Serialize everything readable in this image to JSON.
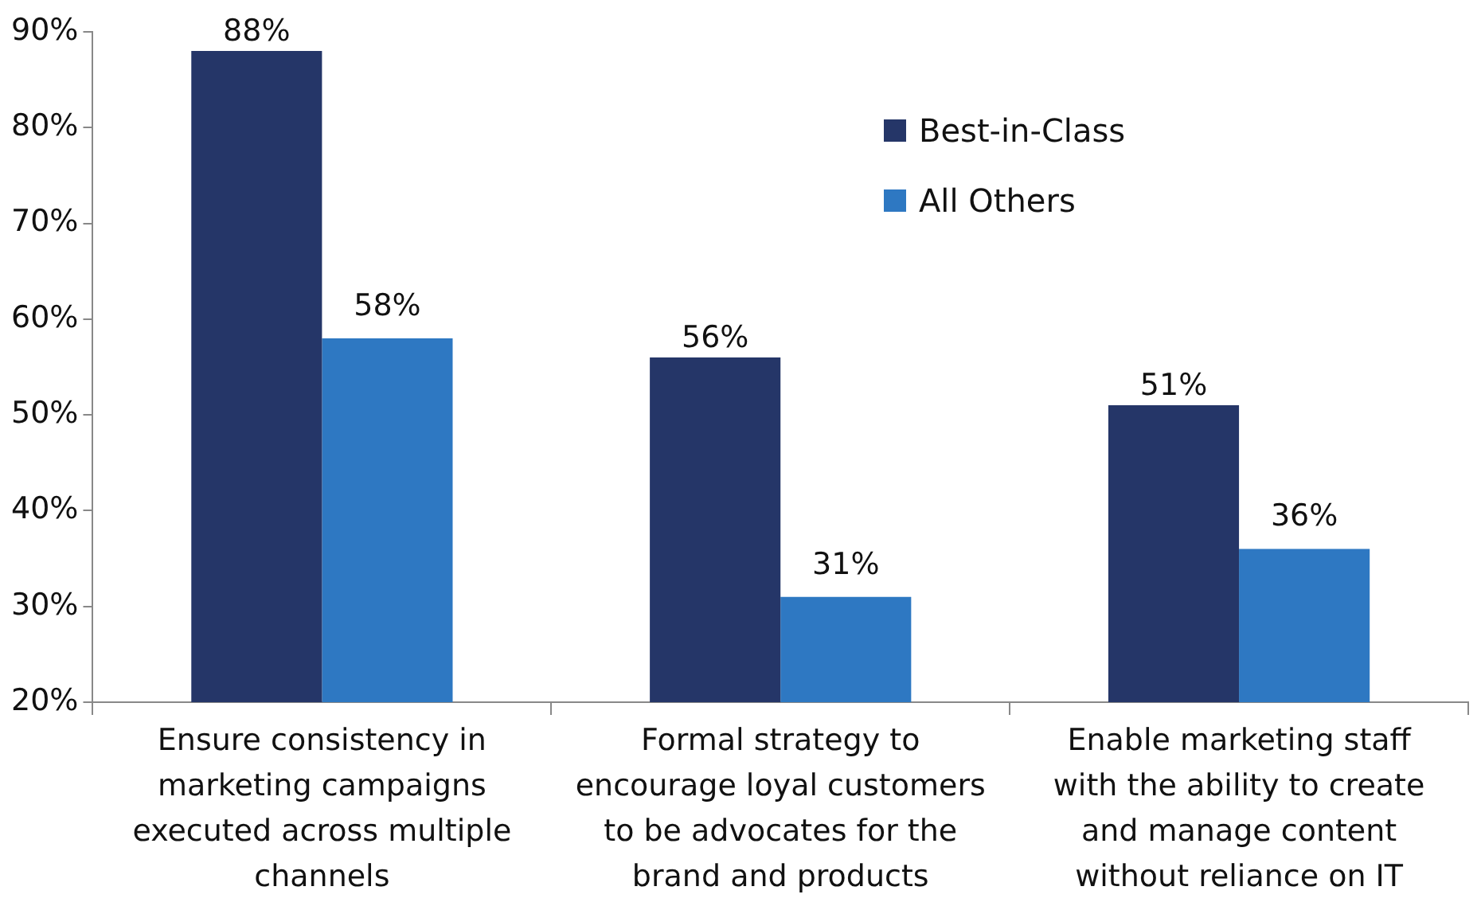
{
  "chart_data": {
    "type": "bar",
    "categories": [
      "Ensure consistency in marketing campaigns executed across multiple channels",
      "Formal strategy to encourage loyal customers to be advocates for the brand and products",
      "Enable marketing staff with the ability to create and manage content without reliance on IT"
    ],
    "series": [
      {
        "name": "Best-in-Class",
        "color": "#253668",
        "values": [
          88,
          56,
          51
        ],
        "value_labels": [
          "88%",
          "56%",
          "51%"
        ]
      },
      {
        "name": "All Others",
        "color": "#2e78c2",
        "values": [
          58,
          31,
          36
        ],
        "value_labels": [
          "58%",
          "31%",
          "36%"
        ]
      }
    ],
    "ylim": [
      20,
      90
    ],
    "yticks": [
      {
        "value": 20,
        "label": "20%"
      },
      {
        "value": 30,
        "label": "30%"
      },
      {
        "value": 40,
        "label": "40%"
      },
      {
        "value": 50,
        "label": "50%"
      },
      {
        "value": 60,
        "label": "60%"
      },
      {
        "value": 70,
        "label": "70%"
      },
      {
        "value": 80,
        "label": "80%"
      },
      {
        "value": 90,
        "label": "90%"
      }
    ],
    "grid": false,
    "legend": "top right"
  }
}
